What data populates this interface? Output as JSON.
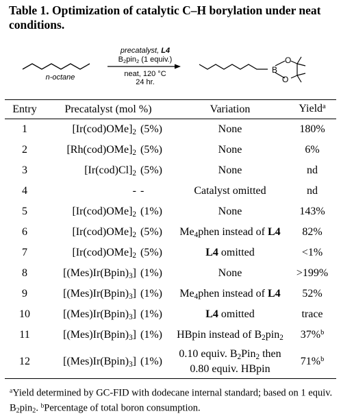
{
  "caption": "Table 1. Optimization of catalytic C–H borylation under neat conditions.",
  "scheme": {
    "reagent_line1": "precatalyst, L4",
    "reagent_line2": "B₂pin₂ (1 equiv.)",
    "condition_line1": "neat, 120 °C",
    "condition_line2": "24 hr.",
    "substrate_label": "n-octane",
    "boron_label": "B",
    "oxygen_label": "O"
  },
  "table": {
    "headers": {
      "entry": "Entry",
      "precatalyst": "Precatalyst (mol %)",
      "variation": "Variation",
      "yield": "Yield",
      "yield_sup": "a"
    },
    "rows": [
      {
        "entry": "1",
        "cat": "[Ir(cod)OMe]",
        "cat_sub": "2",
        "mol": "(5%)",
        "var": "None",
        "yield": "180%"
      },
      {
        "entry": "2",
        "cat": "[Rh(cod)OMe]",
        "cat_sub": "2",
        "mol": "(5%)",
        "var": "None",
        "yield": "6%"
      },
      {
        "entry": "3",
        "cat": "[Ir(cod)Cl]",
        "cat_sub": "2",
        "mol": "(5%)",
        "var": "None",
        "yield": "nd"
      },
      {
        "entry": "4",
        "cat": "-",
        "cat_sub": "",
        "mol": "-",
        "var": "Catalyst omitted",
        "yield": "nd"
      },
      {
        "entry": "5",
        "cat": "[Ir(cod)OMe]",
        "cat_sub": "2",
        "mol": "(1%)",
        "var": "None",
        "yield": "143%"
      },
      {
        "entry": "6",
        "cat": "[Ir(cod)OMe]",
        "cat_sub": "2",
        "mol": "(5%)",
        "var_pre": "Me",
        "var_sub": "4",
        "var_mid": "phen instead of ",
        "var_bold": "L4",
        "yield": "82%"
      },
      {
        "entry": "7",
        "cat": "[Ir(cod)OMe]",
        "cat_sub": "2",
        "mol": "(5%)",
        "var_bold": "L4",
        "var_post": " omitted",
        "yield": "<1%"
      },
      {
        "entry": "8",
        "cat": "[(Mes)Ir(Bpin)",
        "cat_sub": "3",
        "cat_end": "]",
        "mol": "(1%)",
        "var": "None",
        "yield": ">199%"
      },
      {
        "entry": "9",
        "cat": "[(Mes)Ir(Bpin)",
        "cat_sub": "3",
        "cat_end": "]",
        "mol": "(1%)",
        "var_pre": "Me",
        "var_sub": "4",
        "var_mid": "phen instead of ",
        "var_bold": "L4",
        "yield": "52%"
      },
      {
        "entry": "10",
        "cat": "[(Mes)Ir(Bpin)",
        "cat_sub": "3",
        "cat_end": "]",
        "mol": "(1%)",
        "var_bold": "L4",
        "var_post": " omitted",
        "yield": "trace"
      },
      {
        "entry": "11",
        "cat": "[(Mes)Ir(Bpin)",
        "cat_sub": "3",
        "cat_end": "]",
        "mol": "(1%)",
        "var_pre": "HBpin instead of B",
        "var_sub": "2",
        "var_mid": "pin",
        "var_sub2": "2",
        "yield": "37%",
        "yield_sup": "b"
      },
      {
        "entry": "12",
        "cat": "[(Mes)Ir(Bpin)",
        "cat_sub": "3",
        "cat_end": "]",
        "mol": "(1%)",
        "var_l1_pre": "0.10 equiv. B",
        "var_l1_sub": "2",
        "var_l1_mid": "Pin",
        "var_l1_sub2": "2",
        "var_l1_post": " then",
        "var_l2": "0.80 equiv.  HBpin",
        "yield": "71%",
        "yield_sup": "b"
      }
    ]
  },
  "footnote": {
    "a_mark": "a",
    "a_text": "Yield determined by GC-FID with dodecane internal standard; based on 1 equiv. B",
    "a_sub": "2",
    "a_end": "pin",
    "a_sub2": "2",
    "a_dot": ". ",
    "b_mark": "b",
    "b_text": "Percentage of total boron consumption."
  }
}
